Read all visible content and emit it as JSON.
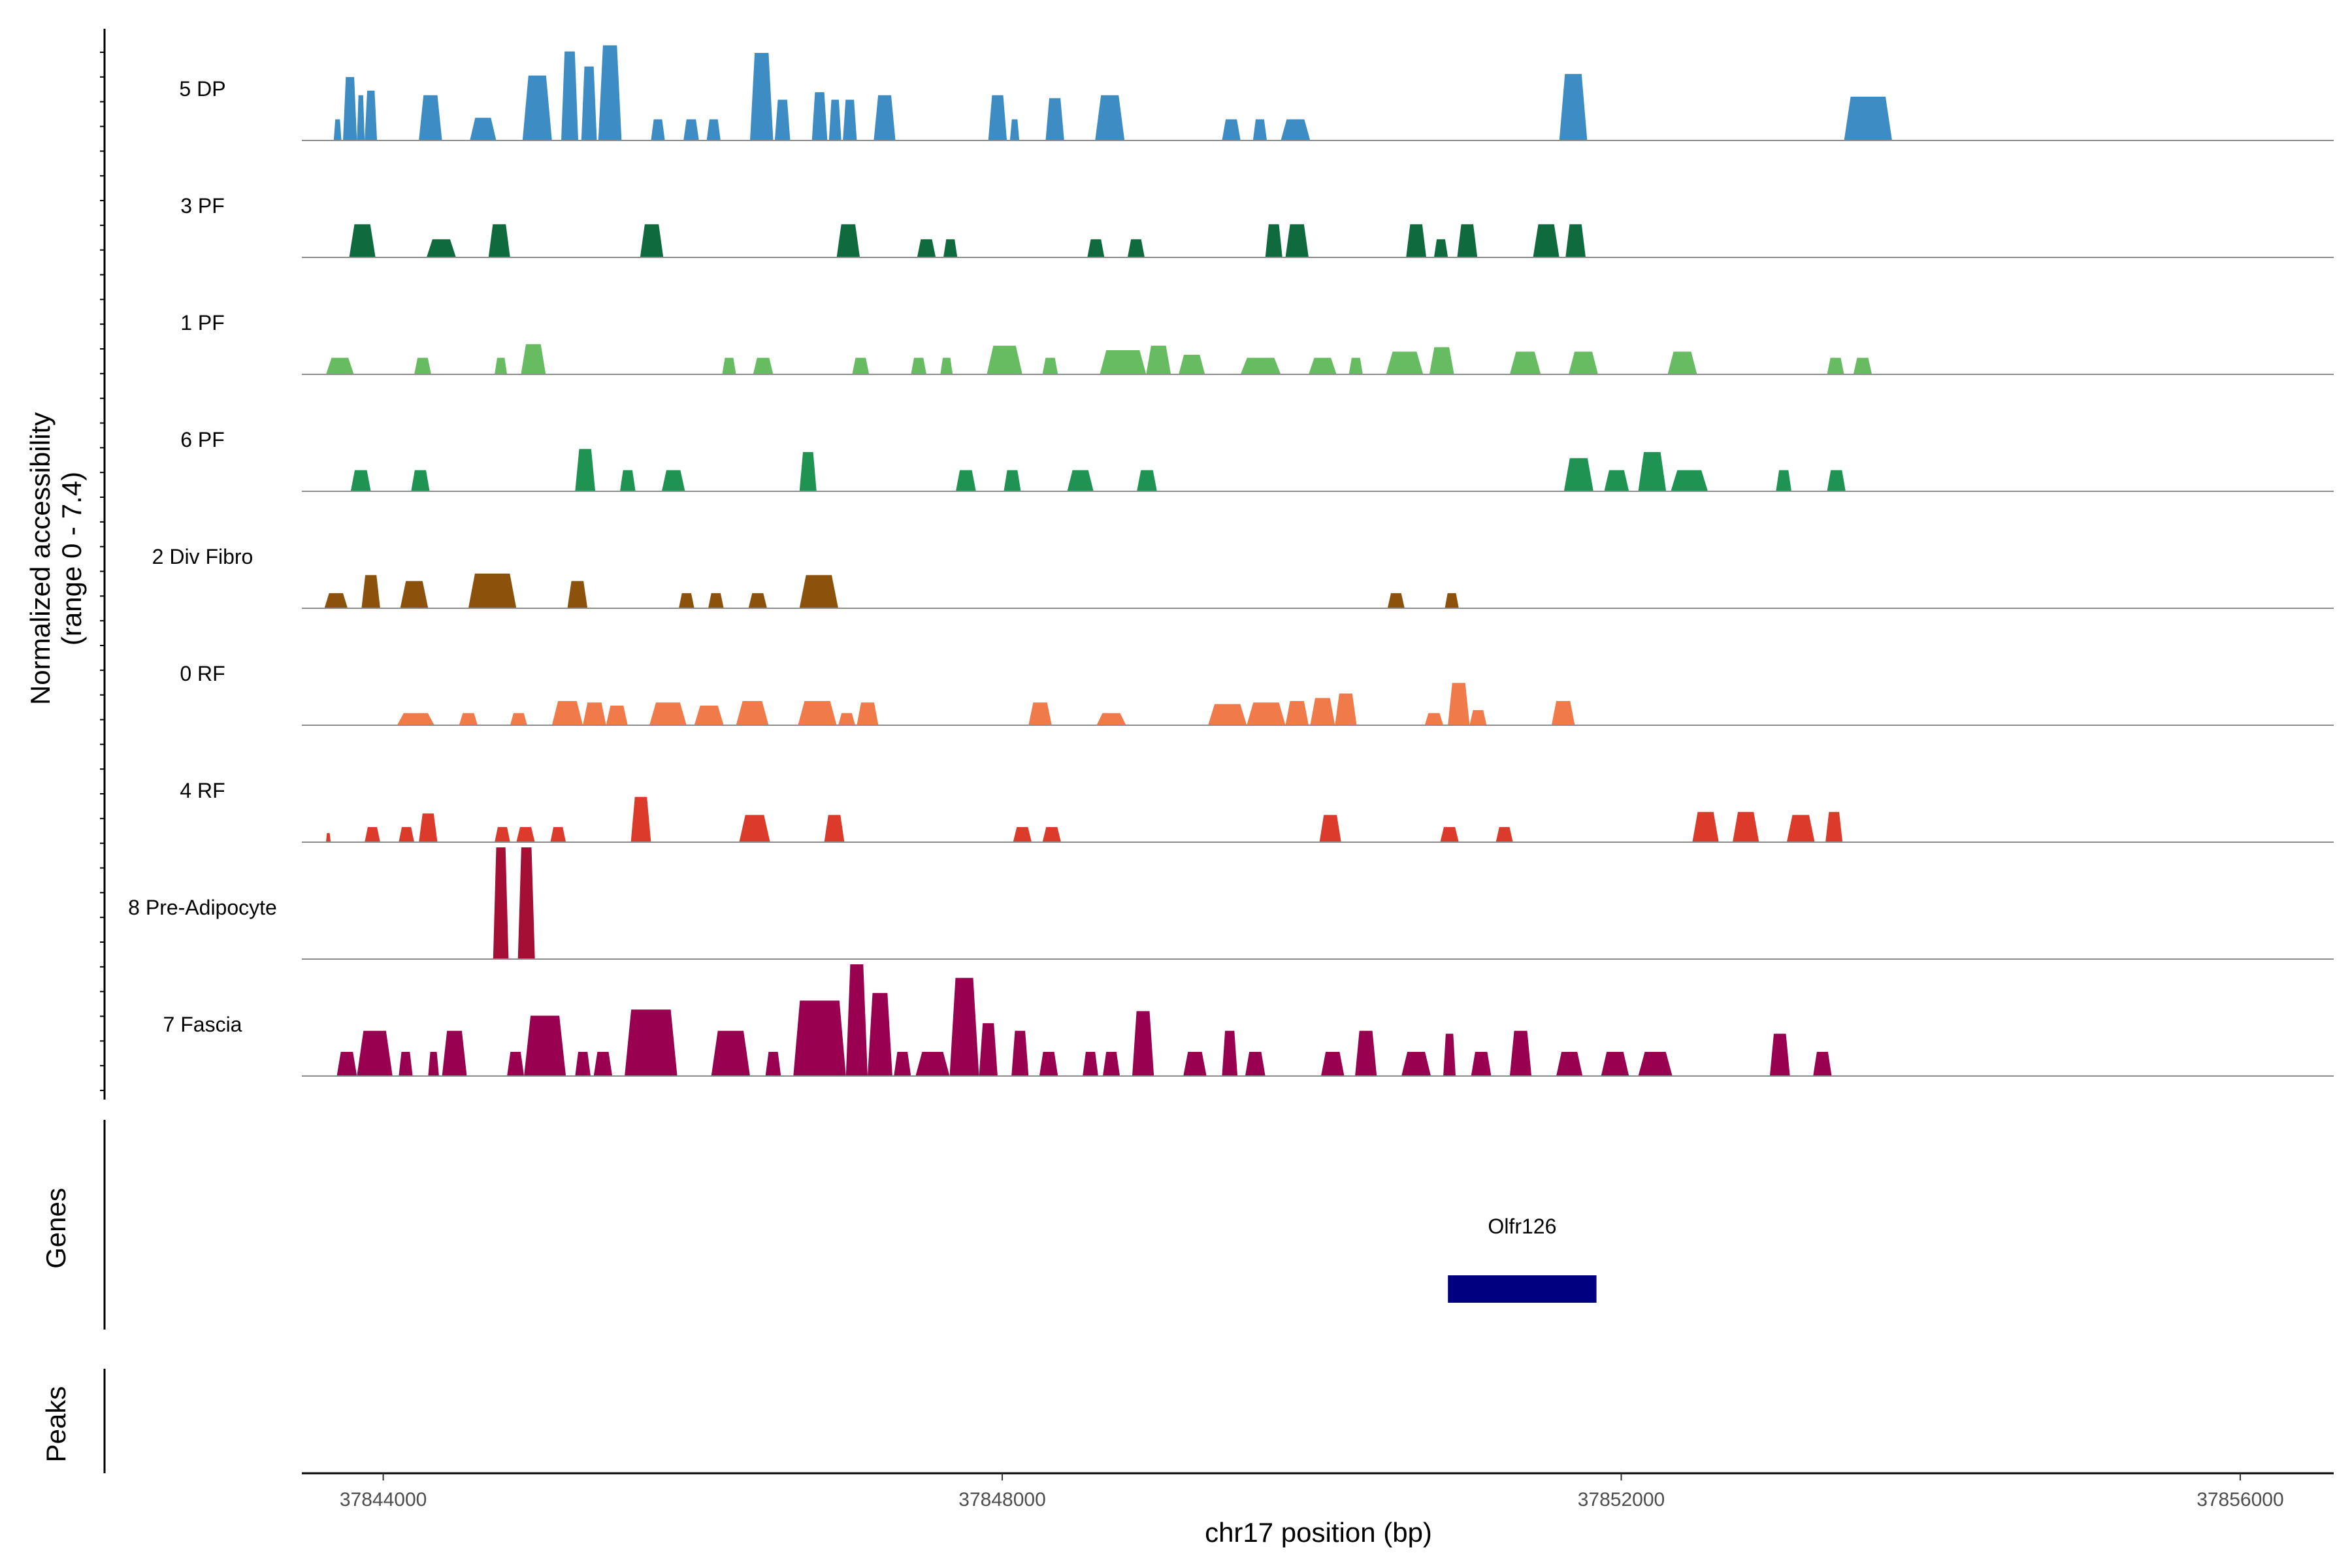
{
  "chart_data": {
    "type": "coverage",
    "title": "",
    "y_axis_title": "Normalized accessibility",
    "y_axis_subtitle": "(range 0 - 7.4)",
    "ylim": [
      0,
      7.4
    ],
    "x_axis_title": "chr17 position (bp)",
    "xlim": [
      37843474,
      37856604
    ],
    "x_ticks": [
      37844000,
      37848000,
      37852000,
      37856000
    ],
    "tracks": [
      {
        "name": "5 DP",
        "color": "#3D8DC4",
        "peaks": [
          [
            37843680,
            37843730,
            1.4
          ],
          [
            37843740,
            37843830,
            4.2
          ],
          [
            37843830,
            37843880,
            3.0
          ],
          [
            37843880,
            37843960,
            3.3
          ],
          [
            37844230,
            37844380,
            3.0
          ],
          [
            37844560,
            37844730,
            1.5
          ],
          [
            37844900,
            37845090,
            4.3
          ],
          [
            37845150,
            37845260,
            5.9
          ],
          [
            37845280,
            37845380,
            4.9
          ],
          [
            37845390,
            37845540,
            6.3
          ],
          [
            37845730,
            37845820,
            1.4
          ],
          [
            37845940,
            37846040,
            1.4
          ],
          [
            37846090,
            37846180,
            1.4
          ],
          [
            37846370,
            37846520,
            5.8
          ],
          [
            37846530,
            37846630,
            2.7
          ],
          [
            37846770,
            37846870,
            3.2
          ],
          [
            37846880,
            37846960,
            2.7
          ],
          [
            37846970,
            37847060,
            2.7
          ],
          [
            37847170,
            37847310,
            3.0
          ],
          [
            37847910,
            37848030,
            3.0
          ],
          [
            37848050,
            37848110,
            1.4
          ],
          [
            37848280,
            37848400,
            2.8
          ],
          [
            37848600,
            37848790,
            3.0
          ],
          [
            37849420,
            37849540,
            1.4
          ],
          [
            37849620,
            37849710,
            1.4
          ],
          [
            37849800,
            37849990,
            1.4
          ],
          [
            37851600,
            37851780,
            4.4
          ],
          [
            37853440,
            37853750,
            2.9
          ]
        ]
      },
      {
        "name": "3 PF",
        "color": "#0F6B3E",
        "peaks": [
          [
            37843780,
            37843950,
            2.2
          ],
          [
            37844280,
            37844470,
            1.2
          ],
          [
            37844680,
            37844820,
            2.2
          ],
          [
            37845660,
            37845810,
            2.2
          ],
          [
            37846930,
            37847080,
            2.2
          ],
          [
            37847450,
            37847570,
            1.2
          ],
          [
            37847620,
            37847710,
            1.2
          ],
          [
            37848550,
            37848660,
            1.2
          ],
          [
            37848810,
            37848920,
            1.2
          ],
          [
            37849700,
            37849810,
            2.2
          ],
          [
            37849830,
            37849980,
            2.2
          ],
          [
            37850610,
            37850740,
            2.2
          ],
          [
            37850790,
            37850880,
            1.2
          ],
          [
            37850940,
            37851070,
            2.2
          ],
          [
            37851430,
            37851600,
            2.2
          ],
          [
            37851640,
            37851770,
            2.2
          ]
        ]
      },
      {
        "name": "1 PF",
        "color": "#67BC62",
        "peaks": [
          [
            37843630,
            37843810,
            1.1
          ],
          [
            37844200,
            37844310,
            1.1
          ],
          [
            37844720,
            37844800,
            1.1
          ],
          [
            37844890,
            37845050,
            2.0
          ],
          [
            37846190,
            37846280,
            1.1
          ],
          [
            37846390,
            37846520,
            1.1
          ],
          [
            37847030,
            37847140,
            1.1
          ],
          [
            37847410,
            37847510,
            1.1
          ],
          [
            37847600,
            37847680,
            1.1
          ],
          [
            37847900,
            37848130,
            1.9
          ],
          [
            37848260,
            37848360,
            1.1
          ],
          [
            37848630,
            37848930,
            1.6
          ],
          [
            37848930,
            37849090,
            1.9
          ],
          [
            37849140,
            37849310,
            1.3
          ],
          [
            37849540,
            37849800,
            1.1
          ],
          [
            37849980,
            37850160,
            1.1
          ],
          [
            37850240,
            37850330,
            1.1
          ],
          [
            37850480,
            37850720,
            1.5
          ],
          [
            37850760,
            37850920,
            1.8
          ],
          [
            37851280,
            37851480,
            1.5
          ],
          [
            37851660,
            37851850,
            1.5
          ],
          [
            37852300,
            37852490,
            1.5
          ],
          [
            37853330,
            37853440,
            1.1
          ],
          [
            37853500,
            37853620,
            1.1
          ]
        ]
      },
      {
        "name": "6 PF",
        "color": "#1F9452",
        "peaks": [
          [
            37843790,
            37843920,
            1.4
          ],
          [
            37844180,
            37844300,
            1.4
          ],
          [
            37845240,
            37845370,
            2.8
          ],
          [
            37845530,
            37845630,
            1.4
          ],
          [
            37845800,
            37845950,
            1.4
          ],
          [
            37846690,
            37846800,
            2.6
          ],
          [
            37847700,
            37847830,
            1.4
          ],
          [
            37848010,
            37848120,
            1.4
          ],
          [
            37848420,
            37848590,
            1.4
          ],
          [
            37848870,
            37849000,
            1.4
          ],
          [
            37851630,
            37851820,
            2.2
          ],
          [
            37851890,
            37852050,
            1.4
          ],
          [
            37852110,
            37852290,
            2.6
          ],
          [
            37852320,
            37852560,
            1.4
          ],
          [
            37853000,
            37853100,
            1.4
          ],
          [
            37853330,
            37853450,
            1.4
          ]
        ]
      },
      {
        "name": "2 Div Fibro",
        "color": "#8C510A",
        "peaks": [
          [
            37843620,
            37843770,
            1.0
          ],
          [
            37843860,
            37843980,
            2.2
          ],
          [
            37844110,
            37844290,
            1.8
          ],
          [
            37844550,
            37844860,
            2.3
          ],
          [
            37845190,
            37845320,
            1.8
          ],
          [
            37845910,
            37846010,
            1.0
          ],
          [
            37846100,
            37846200,
            1.0
          ],
          [
            37846360,
            37846480,
            1.0
          ],
          [
            37846690,
            37846940,
            2.2
          ],
          [
            37850490,
            37850600,
            1.0
          ],
          [
            37850860,
            37850950,
            1.0
          ]
        ]
      },
      {
        "name": "0 RF",
        "color": "#F07A4A",
        "peaks": [
          [
            37844090,
            37844330,
            0.8
          ],
          [
            37844490,
            37844610,
            0.8
          ],
          [
            37844820,
            37844930,
            0.8
          ],
          [
            37845090,
            37845290,
            1.6
          ],
          [
            37845290,
            37845440,
            1.5
          ],
          [
            37845440,
            37845580,
            1.3
          ],
          [
            37845720,
            37845960,
            1.5
          ],
          [
            37846010,
            37846200,
            1.3
          ],
          [
            37846280,
            37846490,
            1.6
          ],
          [
            37846680,
            37846930,
            1.6
          ],
          [
            37846940,
            37847050,
            0.8
          ],
          [
            37847060,
            37847200,
            1.5
          ],
          [
            37848170,
            37848320,
            1.5
          ],
          [
            37848610,
            37848800,
            0.8
          ],
          [
            37849330,
            37849580,
            1.4
          ],
          [
            37849580,
            37849830,
            1.5
          ],
          [
            37849830,
            37849980,
            1.6
          ],
          [
            37849990,
            37850150,
            1.8
          ],
          [
            37850150,
            37850290,
            2.1
          ],
          [
            37850730,
            37850850,
            0.8
          ],
          [
            37850880,
            37851020,
            2.8
          ],
          [
            37851020,
            37851130,
            1.0
          ],
          [
            37851550,
            37851700,
            1.6
          ]
        ]
      },
      {
        "name": "4 RF",
        "color": "#DC3A2B",
        "peaks": [
          [
            37843630,
            37843660,
            0.6
          ],
          [
            37843880,
            37843980,
            1.0
          ],
          [
            37844100,
            37844200,
            1.0
          ],
          [
            37844230,
            37844350,
            1.9
          ],
          [
            37844720,
            37844820,
            1.0
          ],
          [
            37844860,
            37844980,
            1.0
          ],
          [
            37845080,
            37845180,
            1.0
          ],
          [
            37845600,
            37845730,
            3.0
          ],
          [
            37846300,
            37846500,
            1.8
          ],
          [
            37846850,
            37846980,
            1.8
          ],
          [
            37848070,
            37848190,
            1.0
          ],
          [
            37848260,
            37848380,
            1.0
          ],
          [
            37850050,
            37850190,
            1.8
          ],
          [
            37850830,
            37850950,
            1.0
          ],
          [
            37851190,
            37851300,
            1.0
          ],
          [
            37852460,
            37852630,
            2.0
          ],
          [
            37852720,
            37852890,
            2.0
          ],
          [
            37853070,
            37853250,
            1.8
          ],
          [
            37853320,
            37853430,
            2.0
          ]
        ]
      },
      {
        "name": "8 Pre-Adipocyte",
        "color": "#A50F35",
        "peaks": [
          [
            37844710,
            37844810,
            7.4
          ],
          [
            37844870,
            37844980,
            7.4
          ]
        ]
      },
      {
        "name": "7 Fascia",
        "color": "#99004F",
        "peaks": [
          [
            37843700,
            37843830,
            1.6
          ],
          [
            37843830,
            37844060,
            3.0
          ],
          [
            37844100,
            37844190,
            1.6
          ],
          [
            37844290,
            37844360,
            1.6
          ],
          [
            37844380,
            37844540,
            3.0
          ],
          [
            37844800,
            37844910,
            1.6
          ],
          [
            37844910,
            37845180,
            4.0
          ],
          [
            37845240,
            37845340,
            1.6
          ],
          [
            37845360,
            37845480,
            1.6
          ],
          [
            37845560,
            37845900,
            4.4
          ],
          [
            37846120,
            37846370,
            3.0
          ],
          [
            37846470,
            37846570,
            1.6
          ],
          [
            37846650,
            37846990,
            5.0
          ],
          [
            37846990,
            37847130,
            7.4
          ],
          [
            37847130,
            37847290,
            5.5
          ],
          [
            37847300,
            37847410,
            1.6
          ],
          [
            37847440,
            37847660,
            1.6
          ],
          [
            37847660,
            37847850,
            6.5
          ],
          [
            37847850,
            37847970,
            3.5
          ],
          [
            37848060,
            37848170,
            3.0
          ],
          [
            37848240,
            37848360,
            1.6
          ],
          [
            37848520,
            37848620,
            1.6
          ],
          [
            37848650,
            37848760,
            1.6
          ],
          [
            37848840,
            37848980,
            4.3
          ],
          [
            37849170,
            37849320,
            1.6
          ],
          [
            37849420,
            37849520,
            3.0
          ],
          [
            37849570,
            37849700,
            1.6
          ],
          [
            37850060,
            37850210,
            1.6
          ],
          [
            37850280,
            37850420,
            3.0
          ],
          [
            37850580,
            37850770,
            1.6
          ],
          [
            37850850,
            37850930,
            2.8
          ],
          [
            37851030,
            37851160,
            1.6
          ],
          [
            37851280,
            37851420,
            3.0
          ],
          [
            37851580,
            37851750,
            1.6
          ],
          [
            37851870,
            37852050,
            1.6
          ],
          [
            37852110,
            37852330,
            1.6
          ],
          [
            37852960,
            37853090,
            2.8
          ],
          [
            37853240,
            37853360,
            1.6
          ]
        ]
      }
    ],
    "genes": [
      {
        "name": "Olfr126",
        "start": 37850880,
        "end": 37851840,
        "color": "#000080"
      }
    ],
    "row_labels": {
      "genes": "Genes",
      "peaks": "Peaks"
    }
  }
}
